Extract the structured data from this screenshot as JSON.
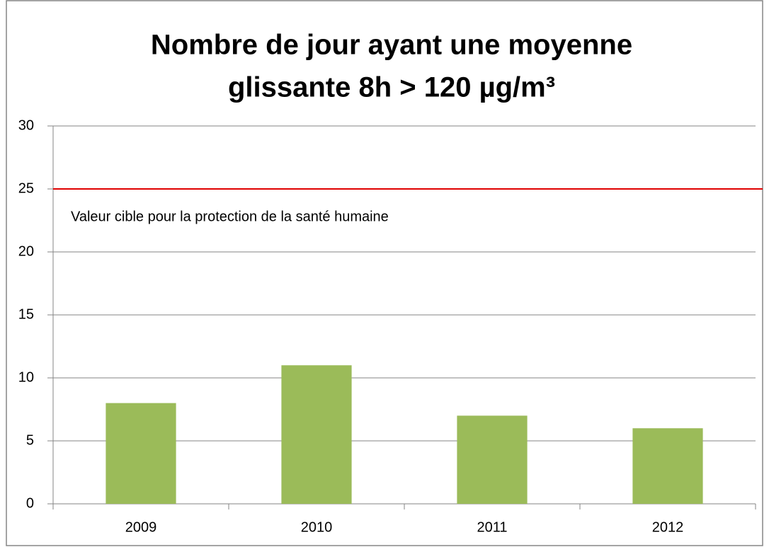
{
  "chart_data": {
    "type": "bar",
    "title": [
      "Nombre de jour ayant une moyenne",
      "glissante   8h  > 120 µg/m³"
    ],
    "categories": [
      "2009",
      "2010",
      "2011",
      "2012"
    ],
    "values": [
      8,
      11,
      7,
      6
    ],
    "color": "#9bbb59",
    "ylim": [
      0,
      30
    ],
    "yticks": [
      0,
      5,
      10,
      15,
      20,
      25,
      30
    ],
    "grid": true,
    "reference_line": {
      "value": 25,
      "label": "Valeur cible pour la protection de la santé humaine",
      "color": "#e00000"
    }
  }
}
